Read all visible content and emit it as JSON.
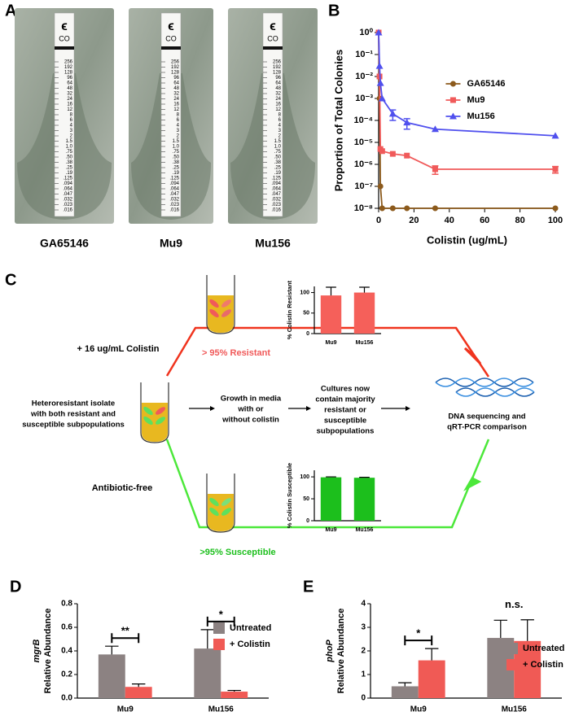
{
  "panel_a": {
    "letter": "A",
    "samples": [
      "GA65146",
      "Mu9",
      "Mu156"
    ],
    "logo": "ϵ",
    "strip_code": "CO",
    "strip_scale": [
      "256",
      "192",
      "128",
      "96",
      "64",
      "48",
      "32",
      "24",
      "16",
      "12",
      "8",
      "6",
      "4",
      "3",
      "2",
      "1.5",
      "1.0",
      ".75",
      ".50",
      ".38",
      ".25",
      ".19",
      ".125",
      ".094",
      ".064",
      ".047",
      ".032",
      ".023",
      ".016"
    ]
  },
  "panel_c": {
    "letter": "C",
    "treated_label": "+ 16 ug/mL Colistin",
    "resistant_label": "> 95% Resistant",
    "untreated_label": "Antibiotic-free",
    "susceptible_label": ">95% Susceptible",
    "left_text": [
      "Heteroresistant isolate",
      "with both resistant and",
      "susceptible subpopulations"
    ],
    "growth_text": [
      "Growth in media",
      "with or",
      "without colistin"
    ],
    "cultures_text": [
      "Cultures now",
      "contain majority",
      "resistant or",
      "susceptible",
      "subpopulations"
    ],
    "end_text": [
      "DNA sequencing and",
      "qRT-PCR comparison"
    ]
  },
  "chart_data": [
    {
      "type": "line",
      "panel": "B",
      "ylabel": "Proportion of Total Colonies",
      "xlabel": "Colistin (ug/mL)",
      "log_y": true,
      "xlim": [
        0,
        100
      ],
      "xticks": [
        0,
        20,
        40,
        60,
        80,
        100
      ],
      "ylim": [
        1e-08,
        1
      ],
      "yticks": [
        {
          "value": 1e-08,
          "label": "10⁻⁸"
        },
        {
          "value": 1e-07,
          "label": "10⁻⁷"
        },
        {
          "value": 1e-06,
          "label": "10⁻⁶"
        },
        {
          "value": 1e-05,
          "label": "10⁻⁵"
        },
        {
          "value": 0.0001,
          "label": "10⁻⁴"
        },
        {
          "value": 0.001,
          "label": "10⁻³"
        },
        {
          "value": 0.01,
          "label": "10⁻²"
        },
        {
          "value": 0.1,
          "label": "10⁻¹"
        },
        {
          "value": 1,
          "label": "10⁰"
        }
      ],
      "legend": "right",
      "x": [
        0,
        0.5,
        1,
        2,
        8,
        16,
        32,
        100
      ],
      "series": [
        {
          "name": "GA65146",
          "color": "#8c5a1c",
          "marker": "circle",
          "values": [
            1,
            0.001,
            1e-07,
            1e-08,
            1e-08,
            1e-08,
            1e-08,
            1e-08
          ],
          "errors": [
            null,
            null,
            null,
            null,
            null,
            null,
            null,
            null
          ]
        },
        {
          "name": "Mu9",
          "color": "#f05a5a",
          "marker": "square",
          "values": [
            1,
            0.01,
            5e-06,
            4e-06,
            3e-06,
            2.5e-06,
            6e-07,
            6e-07
          ],
          "errors": [
            null,
            null,
            null,
            null,
            null,
            null,
            2.5e-07,
            2e-07
          ]
        },
        {
          "name": "Mu156",
          "color": "#5050ee",
          "marker": "triangle",
          "values": [
            1,
            0.03,
            0.005,
            0.001,
            0.0002,
            8e-05,
            4e-05,
            2e-05
          ],
          "errors": [
            null,
            null,
            null,
            null,
            0.0001,
            4e-05,
            null,
            null
          ]
        }
      ]
    },
    {
      "type": "bar",
      "ylabel": "% Colistin Resistant",
      "categories": [
        "Mu9",
        "Mu156"
      ],
      "values": [
        93,
        100
      ],
      "errors": [
        20,
        13
      ],
      "color": "#f5605a",
      "ylim": [
        0,
        115
      ],
      "yticks": [
        0,
        50,
        100
      ]
    },
    {
      "type": "bar",
      "ylabel": "% Colistin Susceptible",
      "categories": [
        "Mu9",
        "Mu156"
      ],
      "values": [
        99,
        98
      ],
      "errors": [
        1,
        1
      ],
      "color": "#1cbf1c",
      "ylim": [
        0,
        115
      ],
      "yticks": [
        0,
        50,
        100
      ]
    },
    {
      "type": "bar",
      "panel": "D",
      "ylabel": [
        "mgrB",
        "Relative Abundance"
      ],
      "categories": [
        "Mu9",
        "Mu156"
      ],
      "ylim": [
        0,
        0.8
      ],
      "yticks": [
        {
          "value": 0,
          "label": "0.0"
        },
        0.2,
        0.4,
        0.6,
        0.8
      ],
      "legend": "upper right",
      "series": [
        {
          "name": "Untreated",
          "color": "#8c8282",
          "values": [
            0.37,
            0.42
          ],
          "errors": [
            0.07,
            0.16
          ]
        },
        {
          "name": "+ Colistin",
          "color": "#f05a55",
          "values": [
            0.095,
            0.055
          ],
          "errors": [
            0.025,
            0.01
          ]
        }
      ],
      "significance": [
        "**",
        "*"
      ],
      "brackets": [
        true,
        true
      ]
    },
    {
      "type": "bar",
      "panel": "E",
      "ylabel": [
        "phoP",
        "Relative Abundance"
      ],
      "categories": [
        "Mu9",
        "Mu156"
      ],
      "ylim": [
        0,
        4
      ],
      "yticks": [
        0,
        1,
        2,
        3,
        4
      ],
      "legend": "right",
      "series": [
        {
          "name": "Untreated",
          "color": "#8c8282",
          "values": [
            0.5,
            2.55
          ],
          "errors": [
            0.15,
            0.75
          ]
        },
        {
          "name": "+ Colistin",
          "color": "#f05a55",
          "values": [
            1.6,
            2.42
          ],
          "errors": [
            0.5,
            0.9
          ]
        }
      ],
      "significance": [
        "*",
        "n.s."
      ],
      "brackets": [
        true,
        false
      ]
    }
  ]
}
